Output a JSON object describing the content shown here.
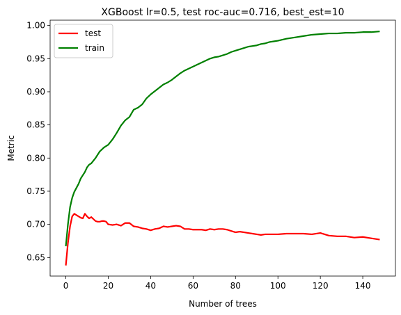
{
  "chart_data": {
    "type": "line",
    "title": "XGBoost lr=0.5, test roc-auc=0.716, best_est=10",
    "xlabel": "Number of trees",
    "ylabel": "Metric",
    "xlim": [
      -7.4,
      155.4
    ],
    "ylim": [
      0.622,
      1.008
    ],
    "xticks": [
      0,
      20,
      40,
      60,
      80,
      100,
      120,
      140
    ],
    "yticks": [
      0.65,
      0.7,
      0.75,
      0.8,
      0.85,
      0.9,
      0.95,
      1.0
    ],
    "ytick_labels": [
      "0.65",
      "0.70",
      "0.75",
      "0.80",
      "0.85",
      "0.90",
      "0.95",
      "1.00"
    ],
    "grid": false,
    "legend_position": "top-left",
    "series": [
      {
        "name": "test",
        "color": "#ff0000",
        "x": [
          0,
          1,
          2,
          3,
          4,
          5,
          6,
          7,
          8,
          9,
          10,
          11,
          12,
          13,
          14,
          15,
          16,
          17,
          18,
          19,
          20,
          22,
          24,
          26,
          28,
          30,
          32,
          34,
          36,
          38,
          40,
          42,
          44,
          46,
          48,
          50,
          52,
          54,
          56,
          58,
          60,
          62,
          64,
          66,
          68,
          70,
          72,
          74,
          76,
          78,
          80,
          82,
          84,
          86,
          88,
          90,
          92,
          94,
          96,
          98,
          100,
          104,
          108,
          112,
          116,
          120,
          124,
          128,
          132,
          136,
          140,
          144,
          148
        ],
        "y": [
          0.638,
          0.672,
          0.697,
          0.712,
          0.716,
          0.714,
          0.712,
          0.71,
          0.709,
          0.716,
          0.712,
          0.709,
          0.711,
          0.708,
          0.705,
          0.704,
          0.704,
          0.705,
          0.705,
          0.704,
          0.7,
          0.699,
          0.7,
          0.698,
          0.702,
          0.702,
          0.697,
          0.696,
          0.694,
          0.693,
          0.691,
          0.693,
          0.694,
          0.697,
          0.696,
          0.697,
          0.698,
          0.697,
          0.693,
          0.693,
          0.692,
          0.692,
          0.692,
          0.691,
          0.693,
          0.692,
          0.693,
          0.693,
          0.692,
          0.69,
          0.688,
          0.689,
          0.688,
          0.687,
          0.686,
          0.685,
          0.684,
          0.685,
          0.685,
          0.685,
          0.685,
          0.686,
          0.686,
          0.686,
          0.685,
          0.687,
          0.683,
          0.682,
          0.682,
          0.68,
          0.681,
          0.679,
          0.677
        ]
      },
      {
        "name": "train",
        "color": "#008000",
        "x": [
          0,
          1,
          2,
          3,
          4,
          5,
          6,
          7,
          8,
          9,
          10,
          11,
          12,
          14,
          16,
          18,
          20,
          22,
          24,
          26,
          28,
          30,
          32,
          34,
          36,
          38,
          40,
          42,
          44,
          46,
          48,
          50,
          52,
          54,
          56,
          58,
          60,
          62,
          64,
          66,
          68,
          70,
          72,
          74,
          76,
          78,
          80,
          82,
          84,
          86,
          88,
          90,
          92,
          94,
          96,
          98,
          100,
          104,
          108,
          112,
          116,
          120,
          124,
          128,
          132,
          136,
          140,
          144,
          148
        ],
        "y": [
          0.667,
          0.7,
          0.726,
          0.74,
          0.749,
          0.755,
          0.761,
          0.769,
          0.774,
          0.779,
          0.786,
          0.79,
          0.792,
          0.8,
          0.81,
          0.816,
          0.82,
          0.828,
          0.838,
          0.849,
          0.857,
          0.862,
          0.873,
          0.876,
          0.881,
          0.89,
          0.896,
          0.901,
          0.906,
          0.911,
          0.914,
          0.918,
          0.923,
          0.928,
          0.932,
          0.935,
          0.938,
          0.941,
          0.944,
          0.947,
          0.95,
          0.952,
          0.953,
          0.955,
          0.957,
          0.96,
          0.962,
          0.964,
          0.966,
          0.968,
          0.969,
          0.97,
          0.972,
          0.973,
          0.975,
          0.976,
          0.977,
          0.98,
          0.982,
          0.984,
          0.986,
          0.987,
          0.988,
          0.988,
          0.989,
          0.989,
          0.99,
          0.99,
          0.991
        ]
      }
    ]
  }
}
